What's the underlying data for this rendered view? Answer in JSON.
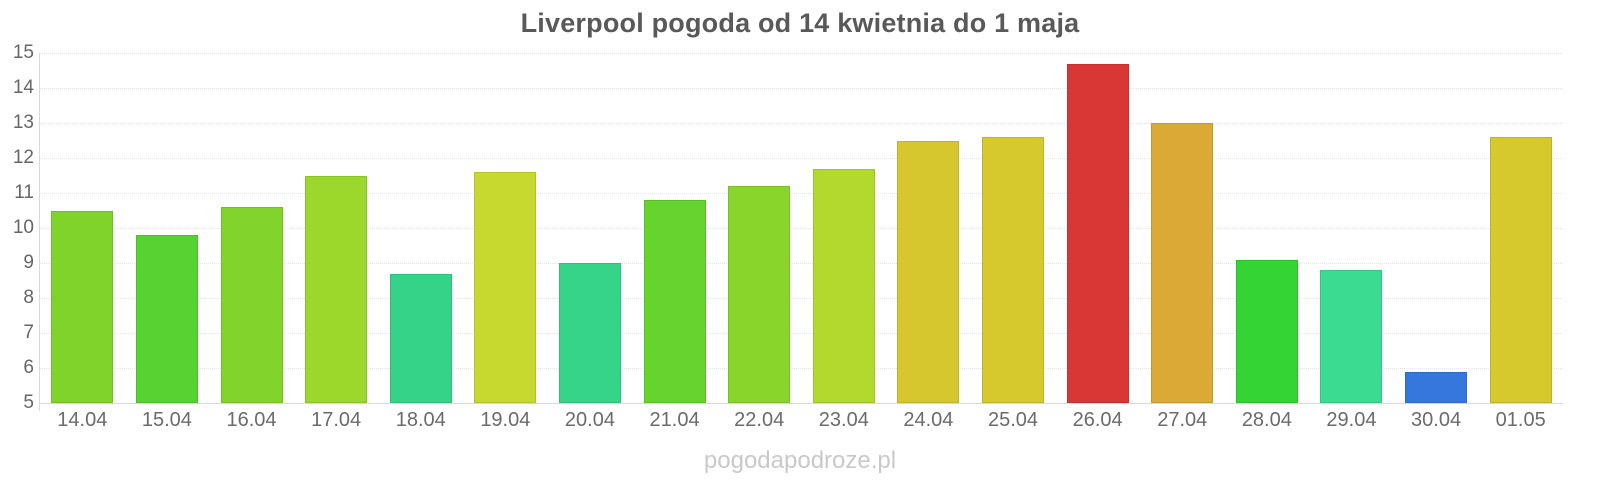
{
  "title": "Liverpool pogoda od 14 kwietnia do 1 maja",
  "watermark": "pogodapodroze.pl",
  "colors": {
    "background": "#ffffff",
    "title_text": "#595959",
    "axis_label": "#666666",
    "x_label": "#6b6b6b",
    "grid_line": "#e4e4e4",
    "axis_line": "#d9d9d9",
    "watermark_text": "#c9c9c9"
  },
  "chart_data": {
    "type": "bar",
    "title": "Liverpool pogoda od 14 kwietnia do 1 maja",
    "xlabel": "",
    "ylabel": "",
    "ylim": [
      5,
      15
    ],
    "yticks": [
      5,
      6,
      7,
      8,
      9,
      10,
      11,
      12,
      13,
      14,
      15
    ],
    "grid": true,
    "legend_position": "none",
    "categories": [
      "14.04",
      "15.04",
      "16.04",
      "17.04",
      "18.04",
      "19.04",
      "20.04",
      "21.04",
      "22.04",
      "23.04",
      "24.04",
      "25.04",
      "26.04",
      "27.04",
      "28.04",
      "29.04",
      "30.04",
      "01.05"
    ],
    "values": [
      10.5,
      9.8,
      10.6,
      11.5,
      8.7,
      11.6,
      9.0,
      10.8,
      11.2,
      11.7,
      12.5,
      12.6,
      14.7,
      13.0,
      9.1,
      8.8,
      5.9,
      12.6
    ],
    "bar_colors": [
      "#7fd32b",
      "#58d232",
      "#82d42c",
      "#9cd72c",
      "#35d387",
      "#c7d92f",
      "#36d488",
      "#66d32e",
      "#8ad52c",
      "#b3d92e",
      "#d7c72e",
      "#d5c92e",
      "#d93636",
      "#dbaa36",
      "#33d433",
      "#3cdb92",
      "#3577dd",
      "#d5c92e"
    ]
  }
}
